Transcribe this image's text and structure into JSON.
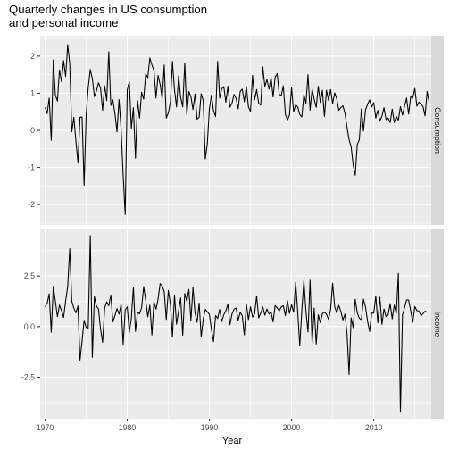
{
  "chart_data": {
    "type": "line",
    "title": [
      "Quarterly changes in US consumption",
      "and personal income"
    ],
    "xlabel": "Year",
    "xlim": [
      1969.4,
      2017.0
    ],
    "x_ticks": [
      1970,
      1980,
      1990,
      2000,
      2010
    ],
    "grid": true,
    "facets": [
      {
        "name": "Consumption",
        "ylim": [
          -2.55,
          2.55
        ],
        "y_ticks": [
          -2,
          -1,
          0,
          1,
          2
        ],
        "start_year": 1970.0,
        "step": 0.25,
        "values": [
          0.62,
          0.45,
          0.87,
          -0.27,
          1.9,
          0.95,
          0.79,
          1.63,
          1.31,
          1.88,
          1.45,
          2.31,
          1.79,
          -0.04,
          0.35,
          -0.29,
          -0.88,
          0.35,
          0.36,
          -1.48,
          0.42,
          1.15,
          1.64,
          1.39,
          0.91,
          1.06,
          1.28,
          1.14,
          0.54,
          1.2,
          0.8,
          2.12,
          0.67,
          0.82,
          0.45,
          -0.04,
          0.83,
          0.04,
          -1.2,
          -2.27,
          1.09,
          1.31,
          0.05,
          0.61,
          -0.75,
          0.8,
          0.33,
          1.03,
          0.84,
          1.52,
          1.42,
          1.95,
          1.76,
          1.62,
          0.87,
          1.48,
          1.24,
          0.86,
          1.76,
          0.33,
          0.47,
          0.75,
          1.86,
          1.09,
          0.63,
          1.47,
          0.89,
          0.63,
          1.82,
          0.42,
          1.05,
          0.91,
          0.56,
          0.98,
          0.3,
          0.35,
          0.99,
          0.8,
          -0.77,
          -0.35,
          0.58,
          0.95,
          0.53,
          0.37,
          1.86,
          0.87,
          1.12,
          1.18,
          0.76,
          1.19,
          0.62,
          0.73,
          0.97,
          0.86,
          0.58,
          1.05,
          1.11,
          0.77,
          1.18,
          0.63,
          0.51,
          1.48,
          0.82,
          1.1,
          0.73,
          0.68,
          1.71,
          1.18,
          1.37,
          1.11,
          1.42,
          0.9,
          1.43,
          1.53,
          0.97,
          0.94,
          1.2,
          0.43,
          0.28,
          0.41,
          1.15,
          0.5,
          0.69,
          0.63,
          0.42,
          0.36,
          0.96,
          0.73,
          1.5,
          0.54,
          1.11,
          0.84,
          0.62,
          1.19,
          0.75,
          1.08,
          0.37,
          1.08,
          0.81,
          1.1,
          0.72,
          1.01,
          0.85,
          0.54,
          0.61,
          0.66,
          0.46,
          0.08,
          -0.25,
          -0.44,
          -0.94,
          -1.21,
          -0.38,
          -0.25,
          0.58,
          -0.02,
          0.55,
          0.7,
          0.82,
          0.63,
          0.75,
          0.33,
          0.54,
          0.25,
          0.38,
          0.61,
          0.29,
          0.33,
          0.21,
          0.57,
          0.21,
          0.38,
          0.27,
          0.64,
          0.41,
          0.65,
          0.87,
          0.44,
          0.91,
          0.87,
          1.13,
          0.65,
          0.76,
          0.71,
          0.64,
          0.39,
          1.05,
          0.75
        ]
      },
      {
        "name": "Income",
        "ylim": [
          -4.55,
          4.8
        ],
        "y_ticks": [
          -2.5,
          0.0,
          2.5
        ],
        "start_year": 1970.0,
        "step": 0.25,
        "values": [
          0.98,
          1.15,
          1.62,
          -0.28,
          1.99,
          1.26,
          0.49,
          1.06,
          0.79,
          0.45,
          1.27,
          1.97,
          3.85,
          1.26,
          0.91,
          0.68,
          1.02,
          -1.66,
          -0.71,
          0.31,
          -0.04,
          -0.07,
          4.49,
          -1.52,
          1.48,
          1.01,
          0.87,
          -0.12,
          -0.78,
          0.91,
          1.22,
          1.03,
          1.57,
          0.23,
          0.54,
          0.89,
          0.61,
          1.11,
          -0.88,
          0.82,
          0.98,
          -0.29,
          0.41,
          1.95,
          -0.24,
          0.72,
          0.63,
          0.94,
          1.98,
          1.29,
          0.48,
          1.06,
          -0.42,
          1.23,
          0.86,
          1.35,
          2.12,
          2.01,
          1.72,
          0.36,
          1.78,
          1.12,
          -0.52,
          1.57,
          0.12,
          0.77,
          1.42,
          -0.43,
          1.64,
          1.25,
          1.84,
          0.31,
          1.93,
          0.67,
          0.21,
          1.16,
          -0.51,
          0.37,
          0.85,
          0.73,
          0.6,
          -0.16,
          -0.74,
          0.55,
          0.4,
          0.85,
          0.25,
          0.58,
          0.78,
          1.11,
          0.09,
          0.62,
          0.86,
          0.92,
          0.3,
          0.71,
          0.53,
          -0.41,
          1.1,
          0.35,
          0.98,
          0.47,
          0.63,
          1.52,
          0.43,
          0.67,
          0.97,
          0.56,
          0.87,
          0.62,
          0.72,
          0.24,
          1.04,
          0.92,
          0.78,
          0.97,
          1.03,
          0.54,
          1.28,
          0.65,
          1.08,
          0.71,
          2.18,
          0.72,
          -0.94,
          0.82,
          2.27,
          0.77,
          -0.27,
          2.29,
          -0.82,
          0.91,
          -0.86,
          0.58,
          0.2,
          0.64,
          0.71,
          0.61,
          0.36,
          0.84,
          2.14,
          0.98,
          0.68,
          1.05,
          0.75,
          0.33,
          0.62,
          -0.35,
          -2.37,
          0.43,
          -0.05,
          1.35,
          0.67,
          0.41,
          0.35,
          1.36,
          0.97,
          0.27,
          -0.24,
          0.67,
          0.66,
          1.52,
          0.19,
          1.45,
          0.11,
          0.87,
          0.49,
          0.57,
          1.13,
          0.38,
          1.06,
          0.65,
          2.63,
          -4.23,
          0.57,
          0.93,
          1.32,
          1.31,
          0.78,
          0.21,
          0.99,
          0.79,
          0.77,
          0.54,
          0.64,
          0.76,
          0.71
        ]
      }
    ]
  }
}
